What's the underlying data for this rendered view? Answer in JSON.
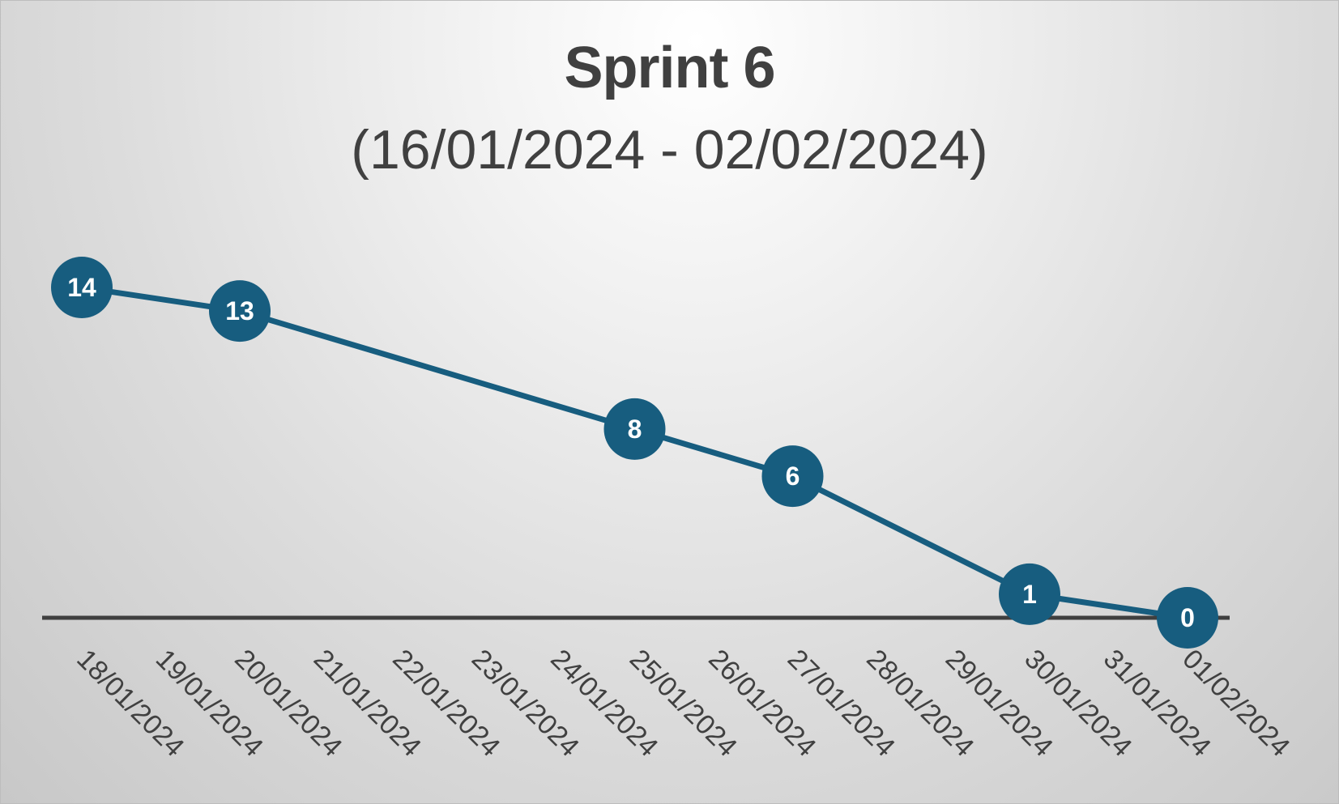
{
  "chart_data": {
    "type": "line",
    "title": "Sprint 6",
    "subtitle": "(16/01/2024 - 02/02/2024)",
    "xlabel": "",
    "ylabel": "",
    "categories": [
      "18/01/2024",
      "19/01/2024",
      "20/01/2024",
      "21/01/2024",
      "22/01/2024",
      "23/01/2024",
      "24/01/2024",
      "25/01/2024",
      "26/01/2024",
      "27/01/2024",
      "28/01/2024",
      "29/01/2024",
      "30/01/2024",
      "31/01/2024",
      "01/02/2024"
    ],
    "series": [
      {
        "points": [
          {
            "x": "18/01/2024",
            "y": 14
          },
          {
            "x": "20/01/2024",
            "y": 13
          },
          {
            "x": "25/01/2024",
            "y": 8
          },
          {
            "x": "27/01/2024",
            "y": 6
          },
          {
            "x": "30/01/2024",
            "y": 1
          },
          {
            "x": "01/02/2024",
            "y": 0
          }
        ],
        "data_labels": [
          "14",
          "13",
          "8",
          "6",
          "1",
          "0"
        ]
      }
    ],
    "ylim": [
      0,
      14
    ],
    "grid": false,
    "legend": "none",
    "colors": {
      "line": "#175d7f",
      "marker": "#175d7f",
      "marker_text": "#ffffff",
      "axis": "#3f3f3f",
      "text": "#404040"
    }
  }
}
